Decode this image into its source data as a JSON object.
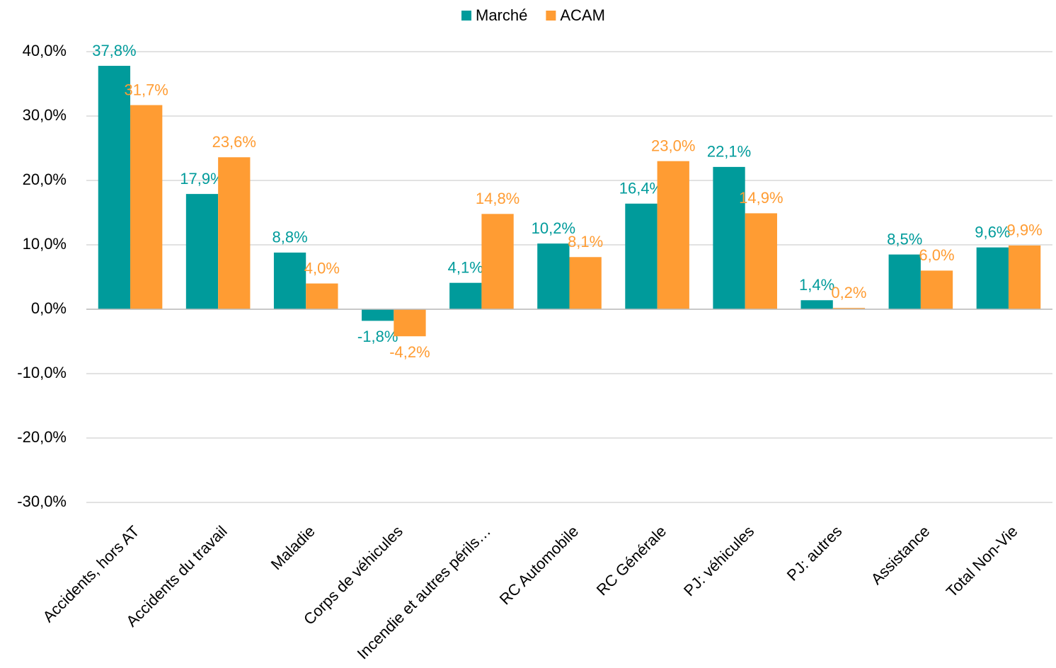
{
  "chart_data": {
    "type": "bar",
    "categories": [
      "Accidents, hors AT",
      "Accidents du travail",
      "Maladie",
      "Corps de véhicules",
      "Incendie et autres périls…",
      "RC Automobile",
      "RC Générale",
      "PJ: véhicules",
      "PJ: autres",
      "Assistance",
      "Total Non-Vie"
    ],
    "series": [
      {
        "name": "Marché",
        "color": "#009b9b",
        "values": [
          37.8,
          17.9,
          8.8,
          -1.8,
          4.1,
          10.2,
          16.4,
          22.1,
          1.4,
          8.5,
          9.6
        ],
        "value_labels": [
          "37,8%",
          "17,9%",
          "8,8%",
          "-1,8%",
          "4,1%",
          "10,2%",
          "16,4%",
          "22,1%",
          "1,4%",
          "8,5%",
          "9,6%"
        ]
      },
      {
        "name": "ACAM",
        "color": "#ff9c33",
        "values": [
          31.7,
          23.6,
          4.0,
          -4.2,
          14.8,
          8.1,
          23.0,
          14.9,
          0.2,
          6.0,
          9.9
        ],
        "value_labels": [
          "31,7%",
          "23,6%",
          "4,0%",
          "-4,2%",
          "14,8%",
          "8,1%",
          "23,0%",
          "14,9%",
          "0,2%",
          "6,0%",
          "9,9%"
        ]
      }
    ],
    "ylim": [
      -30,
      40
    ],
    "yticks": [
      {
        "value": -30,
        "label": "-30,0%"
      },
      {
        "value": -20,
        "label": "-20,0%"
      },
      {
        "value": -10,
        "label": "-10,0%"
      },
      {
        "value": 0,
        "label": "0,0%"
      },
      {
        "value": 10,
        "label": "10,0%"
      },
      {
        "value": 20,
        "label": "20,0%"
      },
      {
        "value": 30,
        "label": "30,0%"
      },
      {
        "value": 40,
        "label": "40,0%"
      }
    ],
    "grid": true,
    "legend": "top"
  }
}
